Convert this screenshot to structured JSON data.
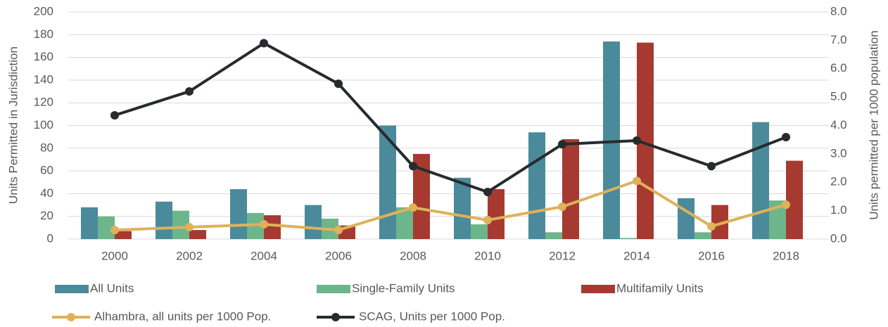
{
  "chart_data": {
    "type": "bar-line",
    "categories": [
      "2000",
      "2002",
      "2004",
      "2006",
      "2008",
      "2010",
      "2012",
      "2014",
      "2016",
      "2018"
    ],
    "y_label": "Units Permitted in Jurisdiction",
    "y2_label": "Units permitted per 1000 population",
    "ylim": [
      0,
      200
    ],
    "yticks": [
      0,
      20,
      40,
      60,
      80,
      100,
      120,
      140,
      160,
      180,
      200
    ],
    "y2lim": [
      0,
      8
    ],
    "y2ticks": [
      {
        "value": 0,
        "label": "0.0"
      },
      {
        "value": 1,
        "label": "1.0"
      },
      {
        "value": 2,
        "label": "2.0"
      },
      {
        "value": 3,
        "label": "3.0"
      },
      {
        "value": 4,
        "label": "4.0"
      },
      {
        "value": 5,
        "label": "5.0"
      },
      {
        "value": 6,
        "label": "6.0"
      },
      {
        "value": 7,
        "label": "7.0"
      },
      {
        "value": 8,
        "label": "8.0"
      }
    ],
    "grid": true,
    "series": [
      {
        "name": "All Units",
        "type": "bar",
        "color": "#4a8a9b",
        "values": [
          28,
          33,
          44,
          30,
          100,
          54,
          94,
          174,
          36,
          103
        ]
      },
      {
        "name": "Single-Family Units",
        "type": "bar",
        "color": "#6db58a",
        "values": [
          20,
          25,
          23,
          18,
          28,
          13,
          6,
          1,
          6,
          34
        ]
      },
      {
        "name": "Multifamily Units",
        "type": "bar",
        "color": "#a63a31",
        "values": [
          7,
          8,
          21,
          12,
          75,
          44,
          88,
          173,
          30,
          69
        ]
      },
      {
        "name": "Alhambra, all units per 1000 Pop.",
        "type": "line",
        "axis": "y2",
        "color": "#dfb15a",
        "values": [
          0.32,
          0.42,
          0.52,
          0.32,
          1.11,
          0.67,
          1.14,
          2.05,
          0.45,
          1.21
        ]
      },
      {
        "name": "SCAG, Units per 1000 Pop.",
        "type": "line",
        "axis": "y2",
        "color": "#262b2d",
        "values": [
          4.36,
          5.2,
          6.9,
          5.47,
          2.57,
          1.66,
          3.34,
          3.47,
          2.57,
          3.59
        ]
      }
    ]
  }
}
